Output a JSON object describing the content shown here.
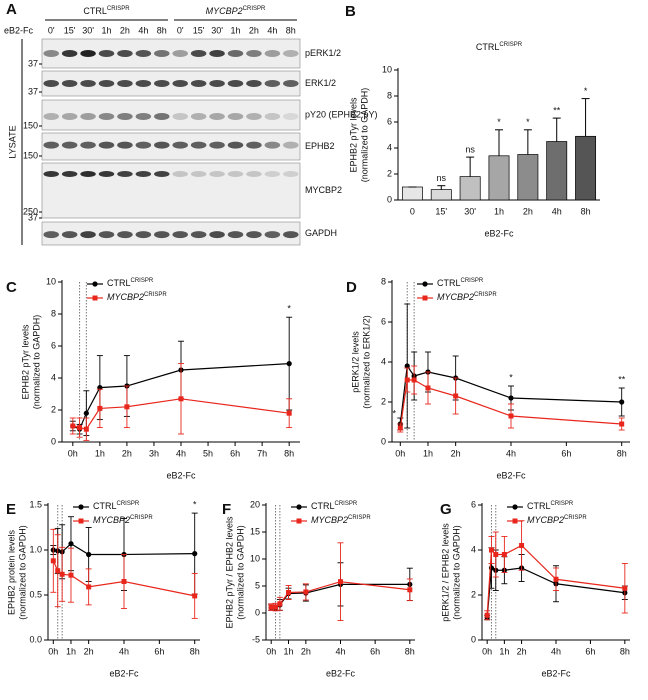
{
  "blot": {
    "panel": "A",
    "treatment": "eB2-Fc",
    "groups": [
      {
        "name": "CTRL",
        "sup": "CRISPR"
      },
      {
        "name": "MYCBP2",
        "sup": "CRISPR",
        "italic": true
      }
    ],
    "lanes": [
      "0'",
      "15'",
      "30'",
      "1h",
      "2h",
      "4h",
      "8h",
      "0'",
      "15'",
      "30'",
      "1h",
      "2h",
      "4h",
      "8h"
    ],
    "rows": [
      {
        "label": "pERK1/2",
        "marker": "37"
      },
      {
        "label": "ERK1/2",
        "marker": "37"
      },
      {
        "label": "pY20 (EPHB2 pY)",
        "marker": "150"
      },
      {
        "label": "EPHB2",
        "marker": "150"
      },
      {
        "label": "MYCBP2",
        "marker": "250"
      },
      {
        "label": "GAPDH",
        "marker": "37"
      }
    ],
    "side_label": "LYSATE"
  },
  "chart_data": [
    {
      "type": "bar",
      "panel": "B",
      "title": "CTRL",
      "title_sup": "CRISPR",
      "ylabel": [
        "EPHB2 pTyr levels",
        "(normalized to GAPDH)"
      ],
      "xlabel": "eB2-Fc",
      "categories": [
        "0",
        "15'",
        "30'",
        "1h",
        "2h",
        "4h",
        "8h"
      ],
      "values": [
        1,
        0.8,
        1.8,
        3.4,
        3.5,
        4.5,
        4.9
      ],
      "errors": [
        0,
        0.3,
        1.5,
        2,
        1.9,
        1.8,
        2.9
      ],
      "annotations": [
        null,
        "ns",
        "ns",
        "*",
        "*",
        "**",
        "*"
      ],
      "colors": [
        "#e6e6e6",
        "#d9d9d9",
        "#c0c0c0",
        "#a6a6a6",
        "#8c8c8c",
        "#6e6e6e",
        "#555555"
      ],
      "ylim": [
        0,
        10
      ],
      "yticks": [
        0,
        2,
        4,
        6,
        8,
        10
      ]
    },
    {
      "type": "line",
      "panel": "C",
      "ylabel": [
        "EPHB2 pTyr levels",
        "(normalized to GAPDH)"
      ],
      "xlabel": "eB2-Fc",
      "x": [
        0,
        0.25,
        0.5,
        1,
        2,
        4,
        8
      ],
      "vlines": [
        0.25,
        0.5
      ],
      "xlim": [
        -0.4,
        8.4
      ],
      "xticks": [
        {
          "value": 0,
          "label": "0h"
        },
        {
          "value": 1,
          "label": "1h"
        },
        {
          "value": 2,
          "label": "2h"
        },
        {
          "value": 3,
          "label": "3h"
        },
        {
          "value": 4,
          "label": "4h"
        },
        {
          "value": 5,
          "label": "5h"
        },
        {
          "value": 6,
          "label": "6h"
        },
        {
          "value": 7,
          "label": "7h"
        },
        {
          "value": 8,
          "label": "8h"
        }
      ],
      "ylim": [
        0,
        10
      ],
      "yticks": [
        0,
        2,
        4,
        6,
        8,
        10
      ],
      "series": [
        {
          "name": "CTRL",
          "name_sup": "CRISPR",
          "color": "#000000",
          "marker": "circle",
          "values": [
            1,
            0.8,
            1.8,
            3.4,
            3.5,
            4.5,
            4.9
          ],
          "errors": [
            0.3,
            0.3,
            1.4,
            2,
            1.9,
            1.8,
            2.9
          ]
        },
        {
          "name": "MYCBP2",
          "name_sup": "CRISPR",
          "italic": true,
          "color": "#e8261c",
          "marker": "square",
          "values": [
            1,
            0.9,
            0.8,
            2.1,
            2.2,
            2.7,
            1.8
          ],
          "errors": [
            0.5,
            0.6,
            0.7,
            1.2,
            1.3,
            2.2,
            0.9
          ]
        }
      ],
      "annotations": [
        {
          "x": 8,
          "text": "*"
        }
      ]
    },
    {
      "type": "line",
      "panel": "D",
      "ylabel": [
        "pERK1/2 levels",
        "(normalized to ERK1/2)"
      ],
      "xlabel": "eB2-Fc",
      "x": [
        0,
        0.25,
        0.5,
        1,
        2,
        4,
        8
      ],
      "vlines": [
        0.25,
        0.5
      ],
      "xlim": [
        -0.3,
        8.3
      ],
      "xticks": [
        {
          "value": 0,
          "label": "0h"
        },
        {
          "value": 1,
          "label": "1h"
        },
        {
          "value": 2,
          "label": "2h"
        },
        {
          "value": 4,
          "label": "4h"
        },
        {
          "value": 6,
          "label": "6h"
        },
        {
          "value": 8,
          "label": "8h"
        }
      ],
      "ylim": [
        0,
        8
      ],
      "yticks": [
        0,
        2,
        4,
        6,
        8
      ],
      "series": [
        {
          "name": "CTRL",
          "name_sup": "CRISPR",
          "color": "#000000",
          "marker": "circle",
          "values": [
            0.9,
            3.8,
            3.3,
            3.5,
            3.2,
            2.2,
            2
          ],
          "errors": [
            0.3,
            3.1,
            1.2,
            1,
            1.1,
            0.6,
            0.7
          ]
        },
        {
          "name": "MYCBP2",
          "name_sup": "CRISPR",
          "italic": true,
          "color": "#e8261c",
          "marker": "square",
          "values": [
            0.7,
            3.1,
            3.1,
            2.7,
            2.3,
            1.3,
            0.9
          ],
          "errors": [
            0.2,
            0.6,
            0.7,
            0.8,
            0.9,
            0.6,
            0.3
          ]
        }
      ],
      "annotations": [
        {
          "x": 0,
          "text": "*"
        },
        {
          "x": 4,
          "text": "*"
        },
        {
          "x": 8,
          "text": "**"
        }
      ]
    },
    {
      "type": "line",
      "panel": "E",
      "ylabel": [
        "EPHB2 protein levels",
        "(normalized to GAPDH)"
      ],
      "xlabel": "eB2-Fc",
      "x": [
        0,
        0.25,
        0.5,
        1,
        2,
        4,
        8
      ],
      "vlines": [
        0.25,
        0.5
      ],
      "xlim": [
        -0.3,
        8.3
      ],
      "xticks": [
        {
          "value": 0,
          "label": "0h"
        },
        {
          "value": 1,
          "label": "1h"
        },
        {
          "value": 2,
          "label": "2h"
        },
        {
          "value": 4,
          "label": "4h"
        },
        {
          "value": 6,
          "label": "6h"
        },
        {
          "value": 8,
          "label": "8h"
        }
      ],
      "ylim": [
        0,
        1.5
      ],
      "yticks": [
        {
          "value": 0,
          "label": "0.0"
        },
        {
          "value": 0.5,
          "label": "0.5"
        },
        {
          "value": 1,
          "label": "1.0"
        },
        {
          "value": 1.5,
          "label": "1.5"
        }
      ],
      "series": [
        {
          "name": "CTRL",
          "name_sup": "CRISPR",
          "color": "#000000",
          "marker": "circle",
          "values": [
            1,
            0.99,
            0.98,
            1.07,
            0.95,
            0.95,
            0.96
          ],
          "errors": [
            0.05,
            0.25,
            0.3,
            0.3,
            0.3,
            0.4,
            0.45
          ]
        },
        {
          "name": "MYCBP2",
          "name_sup": "CRISPR",
          "italic": true,
          "color": "#e8261c",
          "marker": "square",
          "values": [
            0.88,
            0.77,
            0.73,
            0.72,
            0.59,
            0.65,
            0.49
          ],
          "errors": [
            0.35,
            0.4,
            0.3,
            0.3,
            0.2,
            0.3,
            0.25
          ]
        }
      ],
      "annotations": [
        {
          "x": 8,
          "text": "*"
        }
      ]
    },
    {
      "type": "line",
      "panel": "F",
      "ylabel": [
        "EPHB2 pTyr / EPHB2 levels",
        "(normalized to GAPDH)"
      ],
      "xlabel": "eB2-Fc",
      "x": [
        0,
        0.25,
        0.5,
        1,
        2,
        4,
        8
      ],
      "vlines": [
        0.25,
        0.5
      ],
      "xlim": [
        -0.3,
        8.3
      ],
      "xticks": [
        {
          "value": 0,
          "label": "0h"
        },
        {
          "value": 1,
          "label": "1h"
        },
        {
          "value": 2,
          "label": "2h"
        },
        {
          "value": 4,
          "label": "4h"
        },
        {
          "value": 6,
          "label": "6h"
        },
        {
          "value": 8,
          "label": "8h"
        }
      ],
      "ylim": [
        -5,
        20
      ],
      "yticks": [
        -5,
        0,
        5,
        10,
        15,
        20
      ],
      "series": [
        {
          "name": "CTRL",
          "name_sup": "CRISPR",
          "color": "#000000",
          "marker": "circle",
          "values": [
            1,
            1,
            1.5,
            3.6,
            3.7,
            5.3,
            5.3
          ],
          "errors": [
            0.5,
            0.5,
            1,
            1,
            1.5,
            4,
            3
          ]
        },
        {
          "name": "MYCBP2",
          "name_sup": "CRISPR",
          "italic": true,
          "color": "#e8261c",
          "marker": "square",
          "values": [
            1.1,
            1.1,
            1.7,
            3.8,
            3.9,
            5.8,
            4.3
          ],
          "errors": [
            0.6,
            0.7,
            1.2,
            1.3,
            1.5,
            7.2,
            2
          ]
        }
      ]
    },
    {
      "type": "line",
      "panel": "G",
      "ylabel": [
        "pERK1/2 / EPHB2 levels",
        "(normalized to GAPDH)"
      ],
      "xlabel": "eB2-Fc",
      "x": [
        0,
        0.25,
        0.5,
        1,
        2,
        4,
        8
      ],
      "vlines": [
        0.25,
        0.5
      ],
      "xlim": [
        -0.3,
        8.3
      ],
      "xticks": [
        {
          "value": 0,
          "label": "0h"
        },
        {
          "value": 1,
          "label": "1h"
        },
        {
          "value": 2,
          "label": "2h"
        },
        {
          "value": 4,
          "label": "4h"
        },
        {
          "value": 6,
          "label": "6h"
        },
        {
          "value": 8,
          "label": "8h"
        }
      ],
      "ylim": [
        0,
        6
      ],
      "yticks": [
        0,
        2,
        4,
        6
      ],
      "series": [
        {
          "name": "CTRL",
          "name_sup": "CRISPR",
          "color": "#000000",
          "marker": "circle",
          "values": [
            1,
            3.2,
            3.1,
            3.1,
            3.2,
            2.5,
            2.1
          ],
          "errors": [
            0.1,
            0.9,
            0.9,
            0.6,
            0.6,
            0.8,
            0.3
          ]
        },
        {
          "name": "MYCBP2",
          "name_sup": "CRISPR",
          "italic": true,
          "color": "#e8261c",
          "marker": "square",
          "values": [
            1.1,
            4,
            3.8,
            3.8,
            4.2,
            2.7,
            2.3
          ],
          "errors": [
            0.2,
            0.6,
            1,
            0.8,
            1.1,
            0.5,
            1.1
          ]
        }
      ]
    }
  ]
}
